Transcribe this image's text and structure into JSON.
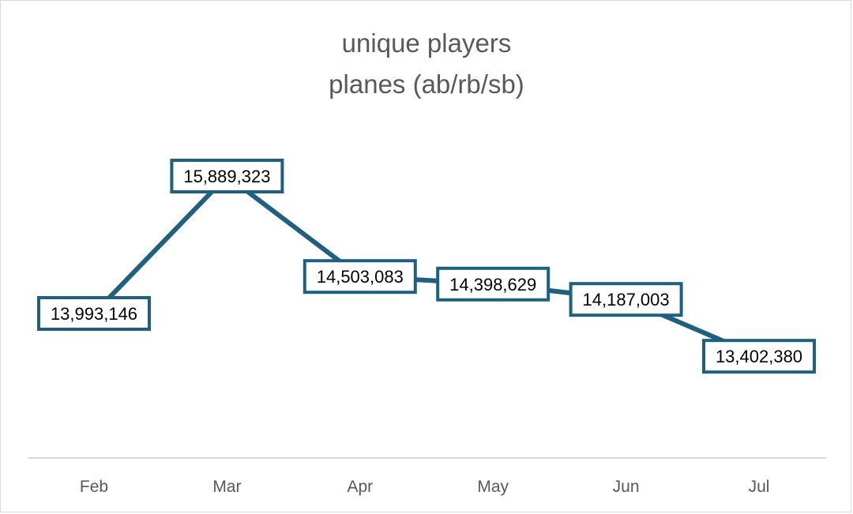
{
  "chart_data": {
    "type": "line",
    "title": "unique players",
    "subtitle": "planes (ab/rb/sb)",
    "categories": [
      "Feb",
      "Mar",
      "Apr",
      "May",
      "Jun",
      "Jul"
    ],
    "series": [
      {
        "values": [
          13993146,
          15889323,
          14503083,
          14398629,
          14187003,
          13402380
        ],
        "labels": [
          "13,993,146",
          "15,889,323",
          "14,503,083",
          "14,398,629",
          "14,187,003",
          "13,402,380"
        ]
      }
    ],
    "line_color": "#1f5f80",
    "grid": false,
    "legend": "none"
  }
}
